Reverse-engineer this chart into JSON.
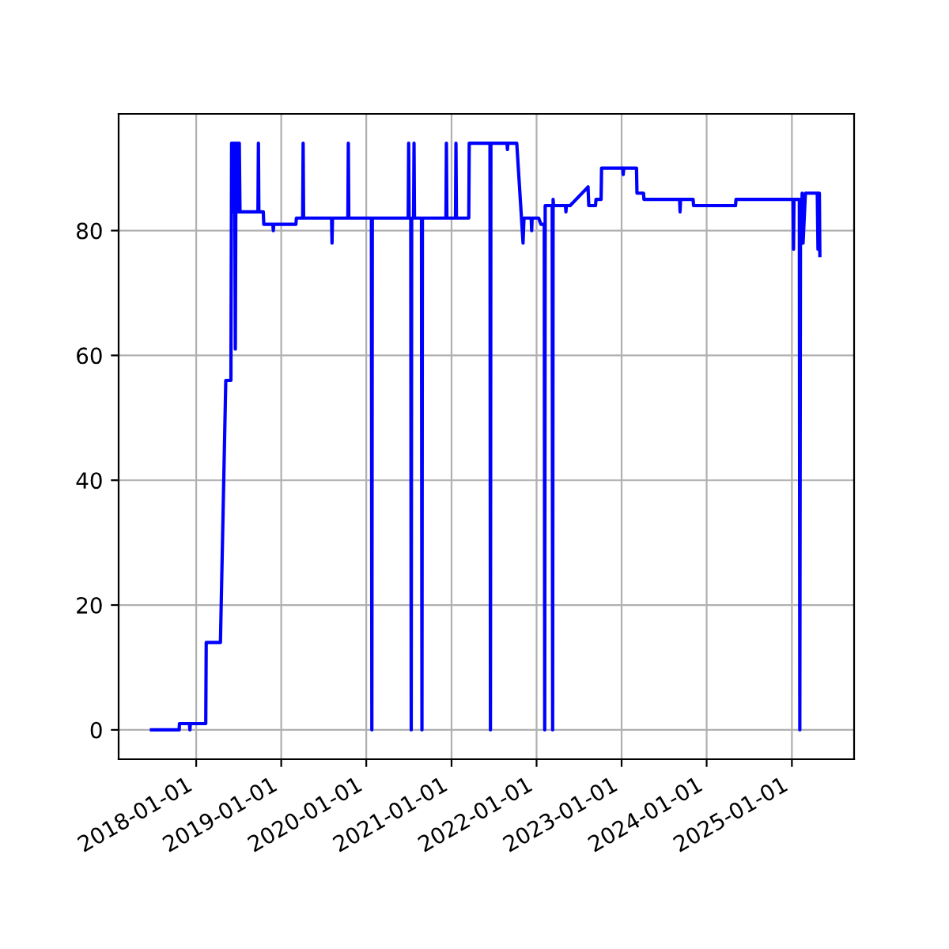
{
  "chart_data": {
    "type": "line",
    "grid": true,
    "marker": "none",
    "line_style": "solid",
    "xlim": [
      "2017-02-02",
      "2025-09-25"
    ],
    "ylim": [
      -4.7,
      98.7
    ],
    "xticks": [
      {
        "value": "2018-01-01",
        "label": "2018-01-01"
      },
      {
        "value": "2019-01-01",
        "label": "2019-01-01"
      },
      {
        "value": "2020-01-01",
        "label": "2020-01-01"
      },
      {
        "value": "2021-01-01",
        "label": "2021-01-01"
      },
      {
        "value": "2022-01-01",
        "label": "2022-01-01"
      },
      {
        "value": "2023-01-01",
        "label": "2023-01-01"
      },
      {
        "value": "2024-01-01",
        "label": "2024-01-01"
      },
      {
        "value": "2025-01-01",
        "label": "2025-01-01"
      }
    ],
    "yticks": [
      0,
      20,
      40,
      60,
      80
    ],
    "series": [
      {
        "color": "#0000ff",
        "x": [
          "2017-06-23",
          "2017-10-20",
          "2017-10-21",
          "2017-12-03",
          "2017-12-05",
          "2017-12-07",
          "2018-02-11",
          "2018-02-13",
          "2018-04-15",
          "2018-05-08",
          "2018-05-30",
          "2018-06-02",
          "2018-06-05",
          "2018-06-08",
          "2018-06-12",
          "2018-06-15",
          "2018-06-18",
          "2018-06-21",
          "2018-06-25",
          "2018-06-28",
          "2018-07-02",
          "2018-07-05",
          "2018-07-08",
          "2018-09-23",
          "2018-09-25",
          "2018-09-27",
          "2018-10-16",
          "2018-10-18",
          "2018-11-26",
          "2018-11-28",
          "2018-11-30",
          "2019-03-05",
          "2019-03-07",
          "2019-04-03",
          "2019-04-05",
          "2019-04-07",
          "2019-08-05",
          "2019-08-07",
          "2019-08-09",
          "2019-10-14",
          "2019-10-16",
          "2019-10-18",
          "2020-01-23",
          "2020-01-25",
          "2020-01-27",
          "2020-06-29",
          "2020-07-01",
          "2020-07-03",
          "2020-07-10",
          "2020-07-12",
          "2020-07-14",
          "2020-07-22",
          "2020-07-24",
          "2020-07-26",
          "2020-08-25",
          "2020-08-27",
          "2020-08-29",
          "2020-12-08",
          "2020-12-10",
          "2020-12-12",
          "2021-01-18",
          "2021-01-20",
          "2021-01-22",
          "2021-03-16",
          "2021-03-18",
          "2021-06-15",
          "2021-06-17",
          "2021-06-19",
          "2021-08-27",
          "2021-08-29",
          "2021-08-31",
          "2021-10-08",
          "2021-11-04",
          "2021-11-08",
          "2021-12-09",
          "2021-12-11",
          "2021-12-13",
          "2022-01-10",
          "2022-01-20",
          "2022-02-03",
          "2022-02-05",
          "2022-02-07",
          "2022-03-09",
          "2022-03-11",
          "2022-03-13",
          "2022-03-15",
          "2022-05-05",
          "2022-05-07",
          "2022-05-09",
          "2022-05-25",
          "2022-08-10",
          "2022-08-13",
          "2022-09-11",
          "2022-09-13",
          "2022-10-05",
          "2022-10-07",
          "2023-01-06",
          "2023-01-08",
          "2023-01-10",
          "2023-03-06",
          "2023-03-08",
          "2023-04-05",
          "2023-04-07",
          "2023-09-07",
          "2023-09-09",
          "2023-09-11",
          "2023-11-04",
          "2023-11-06",
          "2024-05-04",
          "2024-05-06",
          "2025-01-06",
          "2025-01-08",
          "2025-01-10",
          "2025-02-02",
          "2025-02-04",
          "2025-02-07",
          "2025-02-10",
          "2025-02-14",
          "2025-02-18",
          "2025-02-28",
          "2025-04-20",
          "2025-04-23",
          "2025-04-25",
          "2025-04-29",
          "2025-05-01"
        ],
        "values": [
          0,
          0,
          1,
          1,
          0,
          1,
          1,
          14,
          14,
          56,
          56,
          94,
          83,
          94,
          83,
          94,
          61,
          94,
          83,
          94,
          83,
          94,
          83,
          83,
          94,
          83,
          83,
          81,
          81,
          80,
          81,
          81,
          82,
          82,
          94,
          82,
          82,
          78,
          82,
          82,
          94,
          82,
          82,
          0,
          82,
          82,
          94,
          82,
          82,
          0,
          82,
          82,
          94,
          82,
          82,
          0,
          82,
          82,
          94,
          82,
          82,
          94,
          82,
          82,
          94,
          94,
          0,
          94,
          94,
          93,
          94,
          94,
          78,
          82,
          82,
          80,
          82,
          82,
          81,
          81,
          0,
          84,
          84,
          0,
          85,
          84,
          84,
          83,
          84,
          84,
          87,
          84,
          84,
          85,
          85,
          90,
          90,
          89,
          90,
          90,
          86,
          86,
          85,
          85,
          83,
          85,
          85,
          84,
          84,
          85,
          85,
          77,
          85,
          85,
          0,
          85,
          78,
          86,
          78,
          86,
          86,
          77,
          86,
          86,
          76
        ]
      }
    ]
  }
}
